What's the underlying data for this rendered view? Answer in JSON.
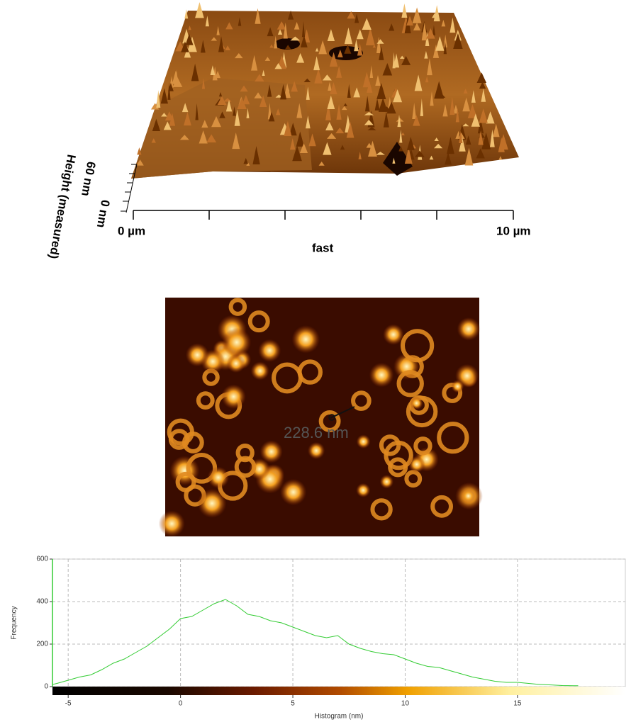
{
  "surface_3d": {
    "height_max": "60 nm",
    "height_min": "0 nm",
    "height_label": "Height (measured)",
    "x_start": "0 µm",
    "x_end": "10 µm",
    "x_label": "fast"
  },
  "image_2d": {
    "measurement": "228.6 nm"
  },
  "chart_data": {
    "type": "line",
    "xlabel": "Histogram (nm)",
    "ylabel": "Frequency",
    "x": [
      -5.7,
      -5.5,
      -5,
      -4.5,
      -4,
      -3.5,
      -3,
      -2.5,
      -2,
      -1.5,
      -1,
      -0.5,
      0,
      0.5,
      1,
      1.5,
      2,
      2.5,
      3,
      3.5,
      4,
      4.5,
      5,
      5.5,
      6,
      6.5,
      7,
      7.5,
      8,
      8.5,
      9,
      9.5,
      10,
      10.5,
      11,
      11.5,
      12,
      12.5,
      13,
      13.5,
      14,
      14.5,
      15,
      15.5,
      16,
      16.5,
      17,
      17.5,
      17.7
    ],
    "values": [
      10,
      15,
      30,
      45,
      55,
      80,
      110,
      130,
      160,
      190,
      230,
      270,
      320,
      330,
      360,
      390,
      410,
      380,
      340,
      330,
      310,
      300,
      280,
      260,
      240,
      230,
      240,
      200,
      180,
      165,
      155,
      150,
      130,
      110,
      95,
      90,
      75,
      60,
      45,
      35,
      25,
      20,
      20,
      15,
      10,
      8,
      5,
      4,
      4
    ],
    "color": "#33cc33",
    "xlim": [
      -5.7,
      19.8
    ],
    "ylim": [
      0,
      600
    ],
    "xticks": [
      -5,
      0,
      5,
      10,
      15
    ],
    "yticks": [
      0,
      200,
      400,
      600
    ],
    "grid": true
  }
}
